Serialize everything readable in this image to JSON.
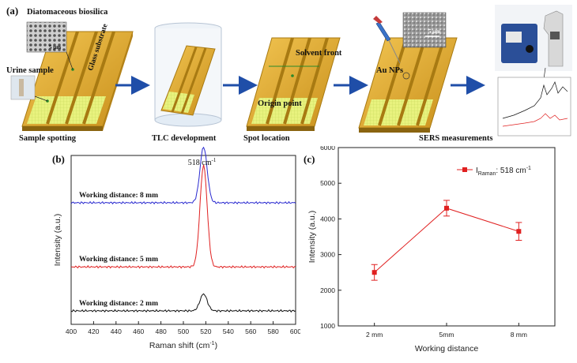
{
  "panel_a": {
    "letter": "(a)",
    "labels": {
      "diatomaceous": "Diatomaceous biosilica",
      "scale1": "5 μm",
      "urine": "Urine sample",
      "glass": "Glass substrate",
      "sample_spotting": "Sample spotting",
      "tlc_dev": "TLC development",
      "solvent_front": "Solvent front",
      "origin_point": "Origin point",
      "spot_location": "Spot location",
      "au_nps": "Au NPs",
      "scale2": "5 μm",
      "sers": "SERS measurements"
    },
    "colors": {
      "plate": "#d9a62a",
      "plate_dark": "#a87a12",
      "spot_area": "#e4f07a",
      "arrow": "#1f4ea8"
    }
  },
  "chart_data": [
    {
      "type": "line",
      "panel": "(b)",
      "title": "",
      "xlabel": "Raman shift (cm",
      "xlabel_sup": "-1",
      "xlabel_end": ")",
      "ylabel": "Intensity (a.u.)",
      "xlim": [
        400,
        600
      ],
      "xticks": [
        400,
        420,
        440,
        460,
        480,
        500,
        520,
        540,
        560,
        580,
        600
      ],
      "peak_label": "518 cm",
      "peak_label_sup": "-1",
      "peak_x": 518,
      "series": [
        {
          "name": "Working distance: 8 mm",
          "color": "#2a2ad0",
          "peak_x": 518,
          "peak_height": 0.33,
          "baseline": 0.72
        },
        {
          "name": "Working distance: 5 mm",
          "color": "#e02020",
          "peak_x": 518,
          "peak_height": 0.6,
          "baseline": 0.34
        },
        {
          "name": "Working distance: 2 mm",
          "color": "#111111",
          "peak_x": 518,
          "peak_height": 0.1,
          "baseline": 0.08
        }
      ]
    },
    {
      "type": "line",
      "panel": "(c)",
      "title": "",
      "xlabel": "Working distance",
      "ylabel": "Intensity (a.u.)",
      "categories": [
        "2 mm",
        "5mm",
        "8 mm"
      ],
      "ylim": [
        1000,
        6000
      ],
      "yticks": [
        1000,
        2000,
        3000,
        4000,
        5000,
        6000
      ],
      "series": [
        {
          "name": "I",
          "name_sub": "Raman",
          "name_rest": ": 518 cm",
          "name_sup": "-1",
          "color": "#e02020",
          "values": [
            2500,
            4300,
            3650
          ],
          "errors": [
            220,
            220,
            250
          ]
        }
      ],
      "legend_position": "top-right"
    }
  ]
}
